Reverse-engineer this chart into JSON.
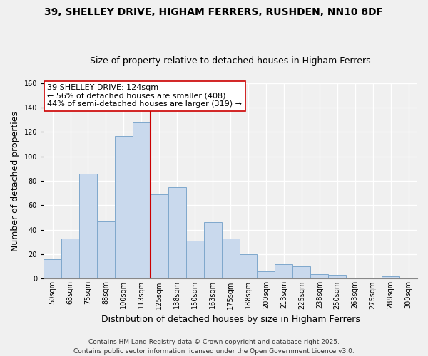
{
  "title": "39, SHELLEY DRIVE, HIGHAM FERRERS, RUSHDEN, NN10 8DF",
  "subtitle": "Size of property relative to detached houses in Higham Ferrers",
  "xlabel": "Distribution of detached houses by size in Higham Ferrers",
  "ylabel": "Number of detached properties",
  "bin_labels": [
    "50sqm",
    "63sqm",
    "75sqm",
    "88sqm",
    "100sqm",
    "113sqm",
    "125sqm",
    "138sqm",
    "150sqm",
    "163sqm",
    "175sqm",
    "188sqm",
    "200sqm",
    "213sqm",
    "225sqm",
    "238sqm",
    "250sqm",
    "263sqm",
    "275sqm",
    "288sqm",
    "300sqm"
  ],
  "bar_heights": [
    16,
    33,
    86,
    47,
    117,
    128,
    69,
    75,
    31,
    46,
    33,
    20,
    6,
    12,
    10,
    4,
    3,
    1,
    0,
    2,
    0
  ],
  "bar_color": "#c9d9ed",
  "bar_edge_color": "#7fa8cc",
  "highlight_line_color": "#cc0000",
  "annotation_line1": "39 SHELLEY DRIVE: 124sqm",
  "annotation_line2": "← 56% of detached houses are smaller (408)",
  "annotation_line3": "44% of semi-detached houses are larger (319) →",
  "annotation_box_color": "#ffffff",
  "annotation_box_edge": "#cc0000",
  "ylim": [
    0,
    160
  ],
  "yticks": [
    0,
    20,
    40,
    60,
    80,
    100,
    120,
    140,
    160
  ],
  "footer_line1": "Contains HM Land Registry data © Crown copyright and database right 2025.",
  "footer_line2": "Contains public sector information licensed under the Open Government Licence v3.0.",
  "bg_color": "#f0f0f0",
  "plot_bg_color": "#f0f0f0",
  "grid_color": "#ffffff",
  "title_fontsize": 10,
  "subtitle_fontsize": 9,
  "axis_label_fontsize": 9,
  "tick_fontsize": 7,
  "annotation_fontsize": 8,
  "footer_fontsize": 6.5,
  "red_line_bar_index": 6,
  "bar_width": 1.0
}
